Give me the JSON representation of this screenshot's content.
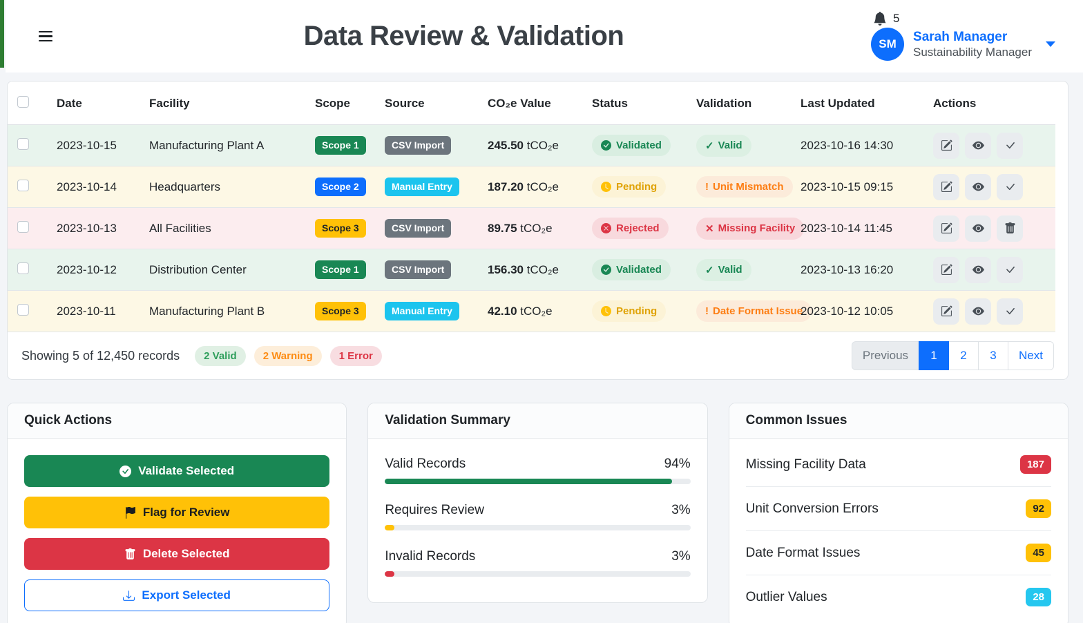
{
  "header": {
    "title": "Data Review & Validation",
    "notification_count": "5",
    "user": {
      "initials": "SM",
      "name": "Sarah Manager",
      "role": "Sustainability Manager"
    }
  },
  "table": {
    "columns": [
      "Date",
      "Facility",
      "Scope",
      "Source",
      "CO₂e Value",
      "Status",
      "Validation",
      "Last Updated",
      "Actions"
    ],
    "rows": [
      {
        "date": "2023-10-15",
        "facility": "Manufacturing Plant A",
        "scope": {
          "label": "Scope 1",
          "variant": "success"
        },
        "source": {
          "label": "CSV Import",
          "variant": "secondary"
        },
        "value": "245.50",
        "unit": "tCO₂e",
        "status": {
          "label": "Validated",
          "variant": "validated",
          "icon": "check-circle"
        },
        "validation": {
          "label": "Valid",
          "prefix": "✓",
          "variant": "valid"
        },
        "updated": "2023-10-16 14:30",
        "tint": "success",
        "actions": [
          "edit",
          "view",
          "approve"
        ]
      },
      {
        "date": "2023-10-14",
        "facility": "Headquarters",
        "scope": {
          "label": "Scope 2",
          "variant": "primary"
        },
        "source": {
          "label": "Manual Entry",
          "variant": "info"
        },
        "value": "187.20",
        "unit": "tCO₂e",
        "status": {
          "label": "Pending",
          "variant": "pending",
          "icon": "clock"
        },
        "validation": {
          "label": "Unit Mismatch",
          "prefix": "!",
          "variant": "warn"
        },
        "updated": "2023-10-15 09:15",
        "tint": "warning",
        "actions": [
          "edit",
          "view",
          "approve"
        ]
      },
      {
        "date": "2023-10-13",
        "facility": "All Facilities",
        "scope": {
          "label": "Scope 3",
          "variant": "warning"
        },
        "source": {
          "label": "CSV Import",
          "variant": "secondary"
        },
        "value": "89.75",
        "unit": "tCO₂e",
        "status": {
          "label": "Rejected",
          "variant": "rejected",
          "icon": "x-circle"
        },
        "validation": {
          "label": "Missing Facility",
          "prefix": "✕",
          "variant": "error"
        },
        "updated": "2023-10-14 11:45",
        "tint": "danger",
        "actions": [
          "edit",
          "view",
          "delete"
        ]
      },
      {
        "date": "2023-10-12",
        "facility": "Distribution Center",
        "scope": {
          "label": "Scope 1",
          "variant": "success"
        },
        "source": {
          "label": "CSV Import",
          "variant": "secondary"
        },
        "value": "156.30",
        "unit": "tCO₂e",
        "status": {
          "label": "Validated",
          "variant": "validated",
          "icon": "check-circle"
        },
        "validation": {
          "label": "Valid",
          "prefix": "✓",
          "variant": "valid"
        },
        "updated": "2023-10-13 16:20",
        "tint": "success",
        "actions": [
          "edit",
          "view",
          "approve"
        ]
      },
      {
        "date": "2023-10-11",
        "facility": "Manufacturing Plant B",
        "scope": {
          "label": "Scope 3",
          "variant": "warning"
        },
        "source": {
          "label": "Manual Entry",
          "variant": "info"
        },
        "value": "42.10",
        "unit": "tCO₂e",
        "status": {
          "label": "Pending",
          "variant": "pending",
          "icon": "clock"
        },
        "validation": {
          "label": "Date Format Issue",
          "prefix": "!",
          "variant": "warn"
        },
        "updated": "2023-10-12 10:05",
        "tint": "warning",
        "actions": [
          "edit",
          "view",
          "approve"
        ]
      }
    ],
    "footer": {
      "showing": "Showing 5 of 12,450 records",
      "badges": [
        {
          "label": "2 Valid",
          "variant": "valid"
        },
        {
          "label": "2 Warning",
          "variant": "warning"
        },
        {
          "label": "1 Error",
          "variant": "error"
        }
      ],
      "pagination": [
        {
          "label": "Previous",
          "state": "disabled"
        },
        {
          "label": "1",
          "state": "active"
        },
        {
          "label": "2",
          "state": ""
        },
        {
          "label": "3",
          "state": ""
        },
        {
          "label": "Next",
          "state": ""
        }
      ]
    }
  },
  "quick_actions": {
    "title": "Quick Actions",
    "buttons": [
      {
        "label": "Validate Selected",
        "variant": "success",
        "icon": "check-circle"
      },
      {
        "label": "Flag for Review",
        "variant": "warning",
        "icon": "flag"
      },
      {
        "label": "Delete Selected",
        "variant": "danger",
        "icon": "trash"
      },
      {
        "label": "Export Selected",
        "variant": "outline-primary",
        "icon": "download"
      }
    ]
  },
  "validation_summary": {
    "title": "Validation Summary",
    "items": [
      {
        "label": "Valid Records",
        "percent": 94,
        "color": "#198754"
      },
      {
        "label": "Requires Review",
        "percent": 3,
        "color": "#ffc107"
      },
      {
        "label": "Invalid Records",
        "percent": 3,
        "color": "#dc3545"
      }
    ]
  },
  "common_issues": {
    "title": "Common Issues",
    "items": [
      {
        "label": "Missing Facility Data",
        "count": "187",
        "variant": "danger"
      },
      {
        "label": "Unit Conversion Errors",
        "count": "92",
        "variant": "warning"
      },
      {
        "label": "Date Format Issues",
        "count": "45",
        "variant": "warning"
      },
      {
        "label": "Outlier Values",
        "count": "28",
        "variant": "info"
      }
    ]
  },
  "colors": {
    "accent": "#0d6efd",
    "success": "#198754",
    "warning": "#ffc107",
    "danger": "#dc3545",
    "info": "#1cc4ee",
    "secondary": "#6c757d",
    "brand_stripe": "#2e7d32"
  }
}
